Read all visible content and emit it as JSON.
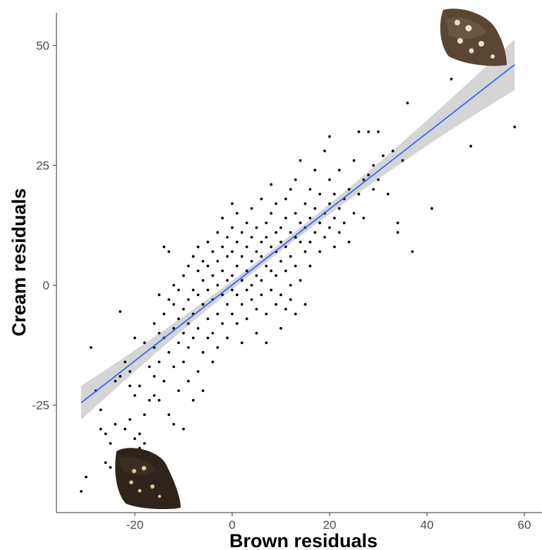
{
  "chart_data": {
    "type": "scatter",
    "title": "",
    "xlabel": "Brown residuals",
    "ylabel": "Cream residuals",
    "xlim": [
      -33,
      60
    ],
    "ylim": [
      -47,
      57
    ],
    "x_ticks": [
      -20,
      0,
      20,
      40,
      60
    ],
    "y_ticks": [
      -25,
      0,
      25,
      50
    ],
    "grid": false,
    "regression": {
      "x": [
        -31,
        58
      ],
      "y": [
        -24.5,
        46
      ],
      "color": "#3366ff",
      "band_color": "#bebebe"
    },
    "colors": {
      "points": "#000000",
      "axis": "#333333"
    },
    "n_points_approx": 900,
    "points": [
      [
        -31,
        -43
      ],
      [
        -30,
        -40
      ],
      [
        -29,
        -13
      ],
      [
        -28,
        -22
      ],
      [
        -27,
        -30
      ],
      [
        -27,
        -26
      ],
      [
        -26,
        -31
      ],
      [
        -26,
        -37
      ],
      [
        -25,
        -38
      ],
      [
        -25,
        -33
      ],
      [
        -24,
        -20
      ],
      [
        -24,
        -29
      ],
      [
        -23,
        -5.5
      ],
      [
        -23,
        -19
      ],
      [
        -22,
        -16
      ],
      [
        -22,
        -30
      ],
      [
        -22,
        -37
      ],
      [
        -21,
        -18
      ],
      [
        -21,
        -21
      ],
      [
        -21,
        -28
      ],
      [
        -20,
        -23
      ],
      [
        -20,
        -32
      ],
      [
        -20,
        -11
      ],
      [
        -19,
        -21
      ],
      [
        -19,
        -31
      ],
      [
        -19,
        -34
      ],
      [
        -18,
        -27
      ],
      [
        -18,
        -33
      ],
      [
        -18,
        -12
      ],
      [
        -17,
        -17
      ],
      [
        -17,
        -24
      ],
      [
        -17,
        -35
      ],
      [
        -16,
        -8
      ],
      [
        -16,
        -19
      ],
      [
        -16,
        -23
      ],
      [
        -16,
        -13
      ],
      [
        -15,
        -24
      ],
      [
        -15,
        -10
      ],
      [
        -15,
        -2
      ],
      [
        -15,
        -16
      ],
      [
        -14,
        -11
      ],
      [
        -14,
        -6
      ],
      [
        -14,
        -20
      ],
      [
        -14,
        8
      ],
      [
        -13,
        7
      ],
      [
        -13,
        -27
      ],
      [
        -13,
        -3
      ],
      [
        -13,
        -14
      ],
      [
        -12,
        -9
      ],
      [
        -12,
        -4
      ],
      [
        -12,
        -17
      ],
      [
        -12,
        0
      ],
      [
        -12,
        -29
      ],
      [
        -11,
        -7
      ],
      [
        -11,
        -1
      ],
      [
        -11,
        -12
      ],
      [
        -11,
        -22
      ],
      [
        -10,
        -10
      ],
      [
        -10,
        -5
      ],
      [
        -10,
        2
      ],
      [
        -10,
        -16
      ],
      [
        -10,
        -30
      ],
      [
        -9,
        -3
      ],
      [
        -9,
        -8
      ],
      [
        -9,
        4
      ],
      [
        -9,
        -13
      ],
      [
        -9,
        -20
      ],
      [
        -8,
        -6
      ],
      [
        -8,
        -1
      ],
      [
        -8,
        6
      ],
      [
        -8,
        -11
      ],
      [
        -8,
        -24
      ],
      [
        -7,
        -2
      ],
      [
        -7,
        3
      ],
      [
        -7,
        8
      ],
      [
        -7,
        -9
      ],
      [
        -7,
        -18
      ],
      [
        -6,
        -4
      ],
      [
        -6,
        1
      ],
      [
        -6,
        5
      ],
      [
        -6,
        -14
      ],
      [
        -6,
        -22
      ],
      [
        -5,
        -1
      ],
      [
        -5,
        4
      ],
      [
        -5,
        9
      ],
      [
        -5,
        -7
      ],
      [
        -5,
        -11
      ],
      [
        -4,
        2
      ],
      [
        -4,
        -3
      ],
      [
        -4,
        7
      ],
      [
        -4,
        -10
      ],
      [
        -4,
        -16
      ],
      [
        -3,
        0
      ],
      [
        -3,
        5
      ],
      [
        -3,
        11
      ],
      [
        -3,
        -6
      ],
      [
        -3,
        -13
      ],
      [
        -2,
        3
      ],
      [
        -2,
        -2
      ],
      [
        -2,
        8
      ],
      [
        -2,
        -8
      ],
      [
        -2,
        14
      ],
      [
        -1,
        1
      ],
      [
        -1,
        6
      ],
      [
        -1,
        -4
      ],
      [
        -1,
        10
      ],
      [
        -1,
        -11
      ],
      [
        0,
        2
      ],
      [
        0,
        -1
      ],
      [
        0,
        7
      ],
      [
        0,
        12
      ],
      [
        0,
        -6
      ],
      [
        0,
        17
      ],
      [
        1,
        4
      ],
      [
        1,
        -2
      ],
      [
        1,
        9
      ],
      [
        1,
        -8
      ],
      [
        1,
        15
      ],
      [
        2,
        1
      ],
      [
        2,
        6
      ],
      [
        2,
        11
      ],
      [
        2,
        -4
      ],
      [
        2,
        -12
      ],
      [
        3,
        3
      ],
      [
        3,
        8
      ],
      [
        3,
        -1
      ],
      [
        3,
        13
      ],
      [
        3,
        -7
      ],
      [
        4,
        5
      ],
      [
        4,
        10
      ],
      [
        4,
        0
      ],
      [
        4,
        -3
      ],
      [
        4,
        16
      ],
      [
        5,
        2
      ],
      [
        5,
        7
      ],
      [
        5,
        12
      ],
      [
        5,
        -5
      ],
      [
        5,
        -10
      ],
      [
        6,
        6
      ],
      [
        6,
        1
      ],
      [
        6,
        9
      ],
      [
        6,
        -2
      ],
      [
        6,
        18
      ],
      [
        7,
        4
      ],
      [
        7,
        10
      ],
      [
        7,
        -6
      ],
      [
        7,
        13
      ],
      [
        7,
        -12
      ],
      [
        8,
        3
      ],
      [
        8,
        8
      ],
      [
        8,
        15
      ],
      [
        8,
        -1
      ],
      [
        8,
        21
      ],
      [
        9,
        7
      ],
      [
        9,
        11
      ],
      [
        9,
        -4
      ],
      [
        9,
        2
      ],
      [
        9,
        17
      ],
      [
        10,
        5
      ],
      [
        10,
        12
      ],
      [
        10,
        -2
      ],
      [
        10,
        9
      ],
      [
        10,
        -9
      ],
      [
        11,
        8
      ],
      [
        11,
        14
      ],
      [
        11,
        3
      ],
      [
        11,
        18
      ],
      [
        11,
        -5
      ],
      [
        12,
        6
      ],
      [
        12,
        11
      ],
      [
        12,
        20
      ],
      [
        12,
        0
      ],
      [
        12,
        -3
      ],
      [
        13,
        10
      ],
      [
        13,
        15
      ],
      [
        13,
        4
      ],
      [
        13,
        22
      ],
      [
        13,
        -6
      ],
      [
        14,
        9
      ],
      [
        14,
        13
      ],
      [
        14,
        1
      ],
      [
        14,
        26
      ],
      [
        15,
        12
      ],
      [
        15,
        17
      ],
      [
        15,
        7
      ],
      [
        15,
        -4
      ],
      [
        16,
        14
      ],
      [
        16,
        20
      ],
      [
        16,
        9
      ],
      [
        16,
        4
      ],
      [
        17,
        11
      ],
      [
        17,
        16
      ],
      [
        17,
        24
      ],
      [
        18,
        13
      ],
      [
        18,
        7
      ],
      [
        18,
        19
      ],
      [
        19,
        15
      ],
      [
        19,
        10
      ],
      [
        19,
        28
      ],
      [
        20,
        17
      ],
      [
        20,
        12
      ],
      [
        20,
        22
      ],
      [
        20,
        31
      ],
      [
        21,
        14
      ],
      [
        21,
        8
      ],
      [
        21,
        19
      ],
      [
        22,
        16
      ],
      [
        22,
        24
      ],
      [
        22,
        11
      ],
      [
        23,
        18
      ],
      [
        23,
        13
      ],
      [
        24,
        20
      ],
      [
        24,
        9
      ],
      [
        25,
        15
      ],
      [
        25,
        26
      ],
      [
        26,
        19
      ],
      [
        26,
        32
      ],
      [
        27,
        14
      ],
      [
        27,
        22
      ],
      [
        28,
        23
      ],
      [
        28,
        32
      ],
      [
        29,
        20
      ],
      [
        29,
        25
      ],
      [
        30,
        22
      ],
      [
        30,
        32
      ],
      [
        31,
        27
      ],
      [
        32,
        19
      ],
      [
        33,
        28
      ],
      [
        34,
        13
      ],
      [
        34,
        11
      ],
      [
        35,
        26
      ],
      [
        36,
        38
      ],
      [
        37,
        7
      ],
      [
        41,
        16
      ],
      [
        45,
        43
      ],
      [
        49,
        29
      ],
      [
        54,
        51
      ],
      [
        55,
        51
      ],
      [
        58,
        33
      ]
    ]
  }
}
